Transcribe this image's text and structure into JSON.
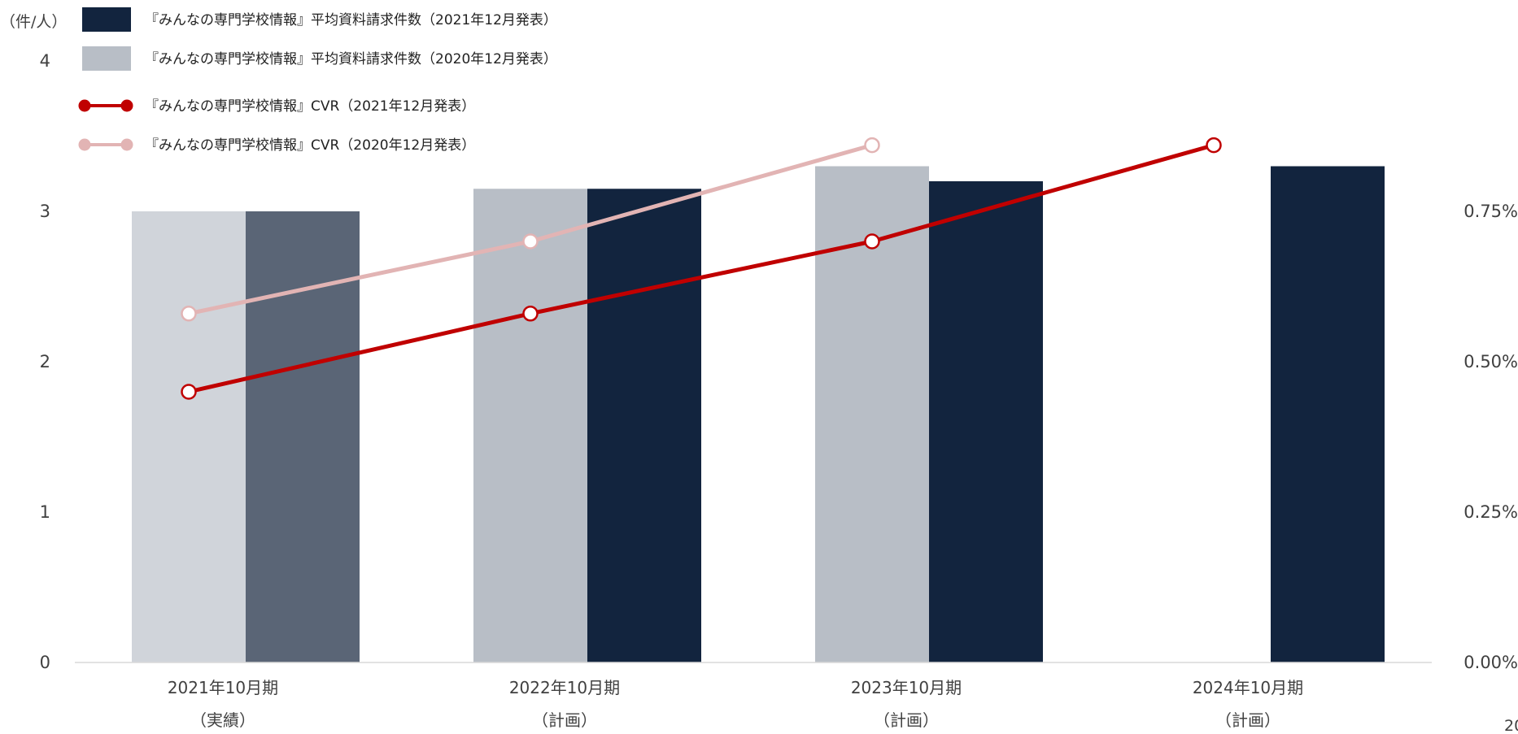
{
  "chart_data": {
    "type": "bar",
    "ylabel": "（件/人）",
    "categories": [
      [
        "2021年10月期",
        "（実績）"
      ],
      [
        "2022年10月期",
        "（計画）"
      ],
      [
        "2023年10月期",
        "（計画）"
      ],
      [
        "2024年10月期",
        "（計画）"
      ]
    ],
    "y_left": {
      "range": [
        0,
        4
      ],
      "ticks": [
        {
          "value": 0,
          "label": "0"
        },
        {
          "value": 1,
          "label": "1"
        },
        {
          "value": 2,
          "label": "2"
        },
        {
          "value": 3,
          "label": "3"
        },
        {
          "value": 4,
          "label": "4"
        }
      ]
    },
    "y_right": {
      "range": [
        0,
        0.01
      ],
      "ticks": [
        {
          "value": 0,
          "label": "0.00%"
        },
        {
          "value": 0.0025,
          "label": "0.25%"
        },
        {
          "value": 0.005,
          "label": "0.50%"
        },
        {
          "value": 0.0075,
          "label": "0.75%"
        }
      ]
    },
    "legend_position": "top-left",
    "bar_series": [
      {
        "name": "『みんなの専門学校情報』平均資料請求件数（2020年12月発表）",
        "values": [
          3.0,
          3.15,
          3.3,
          null
        ],
        "colors": [
          "#d0d4da",
          "#b8bec6",
          "#b8bec6",
          "#b8bec6"
        ]
      },
      {
        "name": "『みんなの専門学校情報』平均資料請求件数（2021年12月発表）",
        "values": [
          3.0,
          3.15,
          3.2,
          3.3
        ],
        "colors": [
          "#5a6576",
          "#12243e",
          "#12243e",
          "#12243e"
        ]
      }
    ],
    "line_series": [
      {
        "name": "『みんなの専門学校情報』CVR（2021年12月発表）",
        "values": [
          0.0045,
          0.0058,
          0.007,
          0.0086
        ],
        "color": "#c00000"
      },
      {
        "name": "『みんなの専門学校情報』CVR（2020年12月発表）",
        "values": [
          0.0058,
          0.007,
          0.0086,
          null
        ],
        "color": "#e2b4b4"
      }
    ],
    "corner_text": "20"
  }
}
